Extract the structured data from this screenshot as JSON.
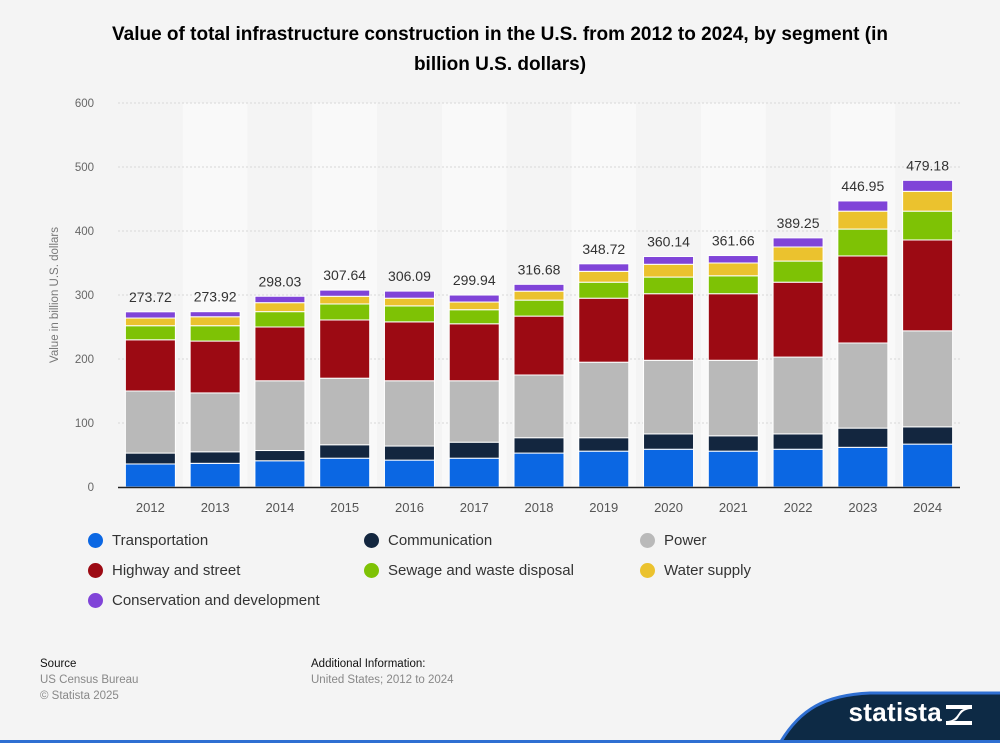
{
  "title": "Value of total infrastructure construction in the U.S. from 2012 to 2024, by segment (in billion U.S. dollars)",
  "chart_data": {
    "type": "bar",
    "stacked": true,
    "title": "Value of total infrastructure construction in the U.S. from 2012 to 2024, by segment (in billion U.S. dollars)",
    "xlabel": "",
    "ylabel": "Value in billion U.S. dollars",
    "ylim": [
      0,
      600
    ],
    "yticks": [
      0,
      100,
      200,
      300,
      400,
      500,
      600
    ],
    "grid": true,
    "legend_position": "bottom",
    "categories": [
      "2012",
      "2013",
      "2014",
      "2015",
      "2016",
      "2017",
      "2018",
      "2019",
      "2020",
      "2021",
      "2022",
      "2023",
      "2024"
    ],
    "totals": [
      "273.72",
      "273.92",
      "298.03",
      "307.64",
      "306.09",
      "299.94",
      "316.68",
      "348.72",
      "360.14",
      "361.66",
      "389.25",
      "446.95",
      "479.18"
    ],
    "series": [
      {
        "name": "Transportation",
        "color": "#0b67e3",
        "values": [
          36,
          37,
          41,
          45,
          42,
          45,
          53,
          56,
          59,
          56,
          59,
          62,
          67
        ]
      },
      {
        "name": "Communication",
        "color": "#13263f",
        "values": [
          17,
          18,
          16,
          21,
          22,
          25,
          24,
          21,
          24,
          24,
          24,
          30,
          27
        ]
      },
      {
        "name": "Power",
        "color": "#b9b9b9",
        "values": [
          97,
          92,
          109,
          104,
          102,
          96,
          98,
          118,
          115,
          118,
          120,
          133,
          150
        ]
      },
      {
        "name": "Highway and street",
        "color": "#9c0a13",
        "values": [
          80,
          81,
          84,
          91,
          92,
          89,
          92,
          100,
          104,
          104,
          117,
          136,
          142
        ]
      },
      {
        "name": "Sewage and waste disposal",
        "color": "#7ec205",
        "values": [
          22,
          24,
          24,
          25,
          25,
          22,
          25,
          25,
          26,
          28,
          33,
          42,
          45
        ]
      },
      {
        "name": "Water supply",
        "color": "#ebc22e",
        "values": [
          12,
          14,
          14,
          12,
          12,
          12,
          14,
          17,
          20,
          20,
          22,
          28,
          31
        ]
      },
      {
        "name": "Conservation and development",
        "color": "#8044d8",
        "values": [
          9.72,
          7.92,
          10.03,
          9.64,
          11.09,
          10.94,
          10.68,
          11.72,
          12.14,
          11.66,
          14.25,
          15.95,
          17.18
        ]
      }
    ]
  },
  "footer": {
    "source_heading": "Source",
    "source_lines": [
      "US Census Bureau",
      "© Statista 2025"
    ],
    "info_heading": "Additional Information:",
    "info_text": "United States; 2012 to 2024"
  },
  "brand": {
    "name": "statista",
    "bg_color": "#0d2a45",
    "accent_color": "#2f6fd2"
  }
}
